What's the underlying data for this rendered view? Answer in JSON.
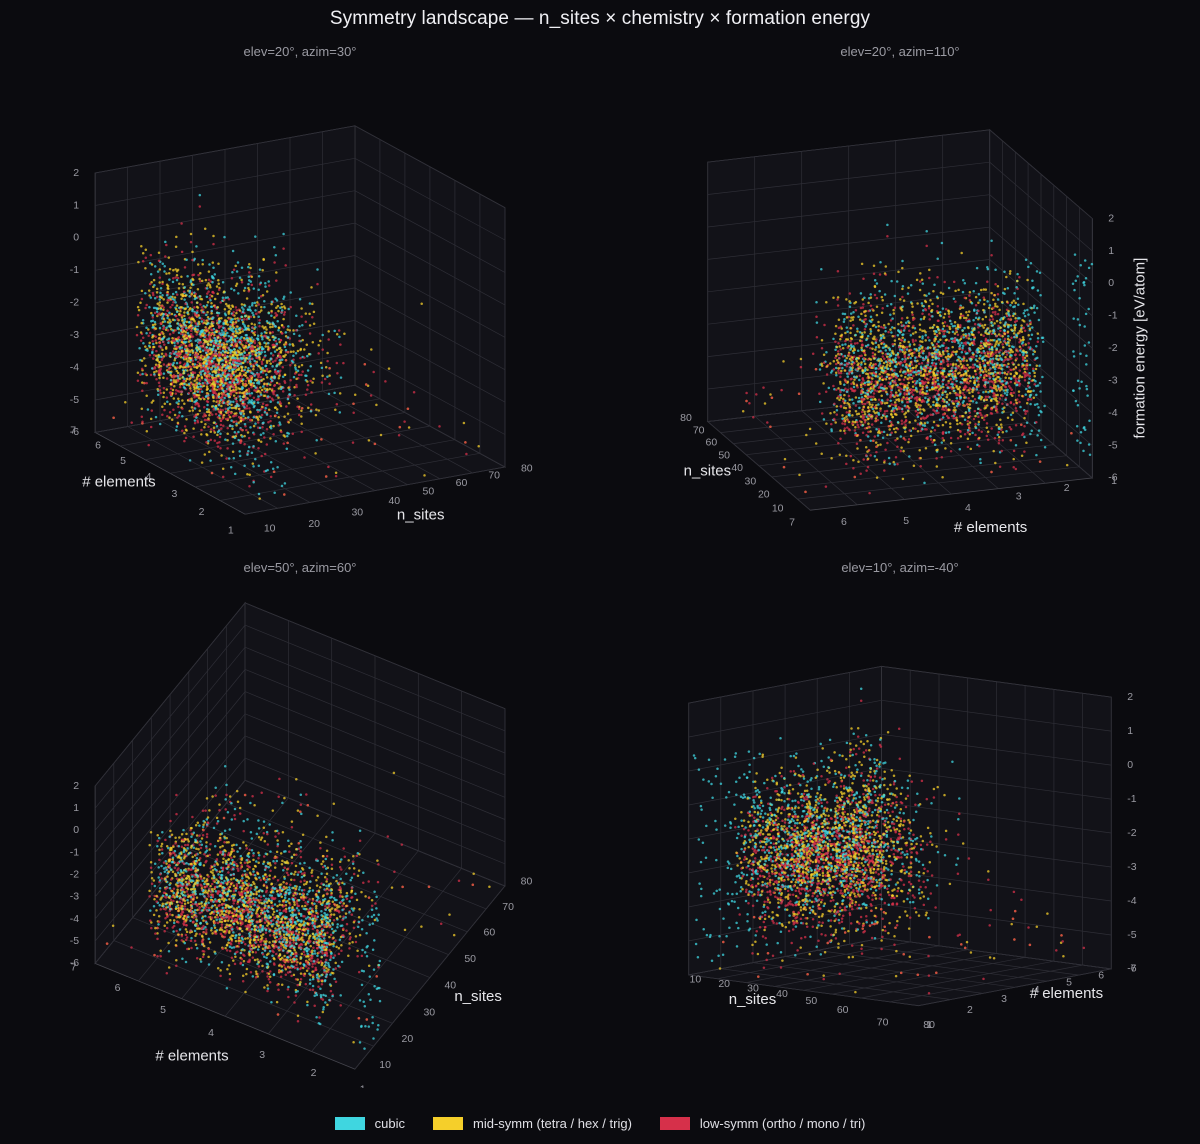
{
  "figure": {
    "title": "Symmetry landscape — n_sites × chemistry × formation energy"
  },
  "colors": {
    "background": "#0b0b0f",
    "cubic": "#3fd6e0",
    "mid": "#f5cf2a",
    "low": "#d6304a",
    "grid": "#2e2e36",
    "pane_edge": "#44444c",
    "tick_text": "#9a9aa2",
    "label_text": "#e6e6ea"
  },
  "legend": {
    "items": [
      {
        "key": "cubic",
        "label": "cubic",
        "color": "#3fd6e0"
      },
      {
        "key": "mid",
        "label": "mid-symm (tetra / hex / trig)",
        "color": "#f5cf2a"
      },
      {
        "key": "low",
        "label": "low-symm (ortho / mono / tri)",
        "color": "#d6304a"
      }
    ]
  },
  "chart_data": [
    {
      "type": "scatter",
      "view": "elev=20°, azim=30°",
      "elev": 20,
      "azim": 30,
      "xlabel": "n_sites",
      "ylabel": "# elements",
      "zlabel": "formation energy [eV/atom]",
      "show_zlabel": false,
      "xlim": [
        0,
        80
      ],
      "ylim": [
        1,
        7
      ],
      "zlim": [
        -6,
        2
      ],
      "xticks": [
        10,
        20,
        30,
        40,
        50,
        60,
        70,
        80
      ],
      "yticks": [
        1,
        2,
        3,
        4,
        5,
        6,
        7
      ],
      "zticks": [
        -6,
        -5,
        -4,
        -3,
        -2,
        -1,
        0,
        1,
        2
      ],
      "series": [
        {
          "name": "cubic",
          "key": "cubic",
          "points": 900
        },
        {
          "name": "mid-symm (tetra / hex / trig)",
          "key": "mid",
          "points": 1200
        },
        {
          "name": "low-symm (ortho / mono / tri)",
          "key": "low",
          "points": 1100
        }
      ]
    },
    {
      "type": "scatter",
      "view": "elev=20°, azim=110°",
      "elev": 20,
      "azim": 110,
      "xlabel": "n_sites",
      "ylabel": "# elements",
      "zlabel": "formation energy [eV/atom]",
      "show_zlabel": true,
      "xlim": [
        0,
        80
      ],
      "ylim": [
        1,
        7
      ],
      "zlim": [
        -6,
        2
      ],
      "xticks": [
        10,
        20,
        30,
        40,
        50,
        60,
        70,
        80
      ],
      "yticks": [
        1,
        2,
        3,
        4,
        5,
        6,
        7
      ],
      "zticks": [
        -6,
        -5,
        -4,
        -3,
        -2,
        -1,
        0,
        1,
        2
      ],
      "series": [
        {
          "name": "cubic",
          "key": "cubic",
          "points": 900
        },
        {
          "name": "mid-symm (tetra / hex / trig)",
          "key": "mid",
          "points": 1200
        },
        {
          "name": "low-symm (ortho / mono / tri)",
          "key": "low",
          "points": 1100
        }
      ]
    },
    {
      "type": "scatter",
      "view": "elev=50°, azim=60°",
      "elev": 50,
      "azim": 60,
      "xlabel": "n_sites",
      "ylabel": "# elements",
      "zlabel": "formation energy [eV/atom]",
      "show_zlabel": false,
      "xlim": [
        0,
        80
      ],
      "ylim": [
        1,
        7
      ],
      "zlim": [
        -6,
        2
      ],
      "xticks": [
        10,
        20,
        30,
        40,
        50,
        60,
        70,
        80
      ],
      "yticks": [
        1,
        2,
        3,
        4,
        5,
        6,
        7
      ],
      "zticks": [
        -6,
        -5,
        -4,
        -3,
        -2,
        -1,
        0,
        1,
        2
      ],
      "series": [
        {
          "name": "cubic",
          "key": "cubic",
          "points": 900
        },
        {
          "name": "mid-symm (tetra / hex / trig)",
          "key": "mid",
          "points": 1200
        },
        {
          "name": "low-symm (ortho / mono / tri)",
          "key": "low",
          "points": 1100
        }
      ]
    },
    {
      "type": "scatter",
      "view": "elev=10°, azim=-40°",
      "elev": 10,
      "azim": -40,
      "xlabel": "n_sites",
      "ylabel": "# elements",
      "zlabel": "formation energy [eV/atom]",
      "show_zlabel": false,
      "xlim": [
        0,
        80
      ],
      "ylim": [
        1,
        7
      ],
      "zlim": [
        -6,
        2
      ],
      "xticks": [
        10,
        20,
        30,
        40,
        50,
        60,
        70,
        80
      ],
      "yticks": [
        1,
        2,
        3,
        4,
        5,
        6,
        7
      ],
      "zticks": [
        -6,
        -5,
        -4,
        -3,
        -2,
        -1,
        0,
        1,
        2
      ],
      "series": [
        {
          "name": "cubic",
          "key": "cubic",
          "points": 900
        },
        {
          "name": "mid-symm (tetra / hex / trig)",
          "key": "mid",
          "points": 1200
        },
        {
          "name": "low-symm (ortho / mono / tri)",
          "key": "low",
          "points": 1100
        }
      ]
    }
  ]
}
